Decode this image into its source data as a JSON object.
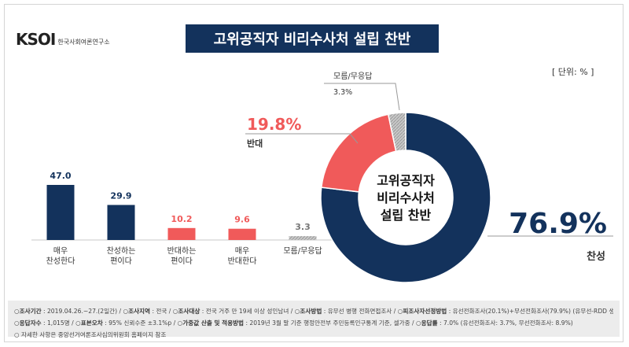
{
  "logo": {
    "mark": "KSOI",
    "sub": "한국사회여론연구소"
  },
  "title": "고위공직자 비리수사처 설립 찬반",
  "unit": "[ 단위: % ]",
  "chart_data": [
    {
      "type": "bar",
      "categories": [
        [
          "매우",
          "찬성한다"
        ],
        [
          "찬성하는",
          "편이다"
        ],
        [
          "반대하는",
          "편이다"
        ],
        [
          "매우",
          "반대한다"
        ],
        [
          "모름/무응답"
        ]
      ],
      "values": [
        47.0,
        29.9,
        10.2,
        9.6,
        3.3
      ],
      "value_labels": [
        "47.0",
        "29.9",
        "10.2",
        "9.6",
        "3.3"
      ],
      "colors": [
        "#13325c",
        "#13325c",
        "#f05a5a",
        "#f05a5a",
        "#bdbdbd"
      ]
    },
    {
      "type": "pie",
      "center_label": [
        "고위공직자",
        "비리수사처",
        "설립 찬반"
      ],
      "slices": [
        {
          "label": "찬성",
          "value": 76.9,
          "value_label": "76.9%",
          "color": "#13325c"
        },
        {
          "label": "반대",
          "value": 19.8,
          "value_label": "19.8%",
          "color": "#f05a5a"
        },
        {
          "label": "모름/무응답",
          "value": 3.3,
          "value_label": "3.3%",
          "color": "#bdbdbd"
        }
      ]
    }
  ],
  "footer": {
    "row1": [
      {
        "k": "조사기간",
        "v": " : 2019.04.26.~27.(2일간)  /  "
      },
      {
        "k": "조사지역",
        "v": " : 전국  /  "
      },
      {
        "k": "조사대상",
        "v": " : 전국 거주 만 19세 이상 성인남녀  /  "
      },
      {
        "k": "조사방법",
        "v": " : 유무선 병행 전화면접조사  /  "
      },
      {
        "k": "피조사자선정방법",
        "v": " : 유선전화조사(20.1%)+무선전화조사(79.9%) (유무선-RDD 생성)"
      }
    ],
    "row2": [
      {
        "k": "응답자수",
        "v": " : 1,015명  /  "
      },
      {
        "k": "표본오차",
        "v": " : 95% 신뢰수준 ±3.1%p  /  "
      },
      {
        "k": "가중값 산출 및 적용방법",
        "v": " : 2019년 3월 말 기준 행정안전부 주민등록인구통계 기준, 셀가중  /  "
      },
      {
        "k": "응답률",
        "v": " : 7.0% (유선전화조사: 3.7%, 무선전화조사: 8.9%)"
      }
    ],
    "row3": "자세한 사항은 중앙선거여론조사심의위원회 홈페이지 참조"
  }
}
